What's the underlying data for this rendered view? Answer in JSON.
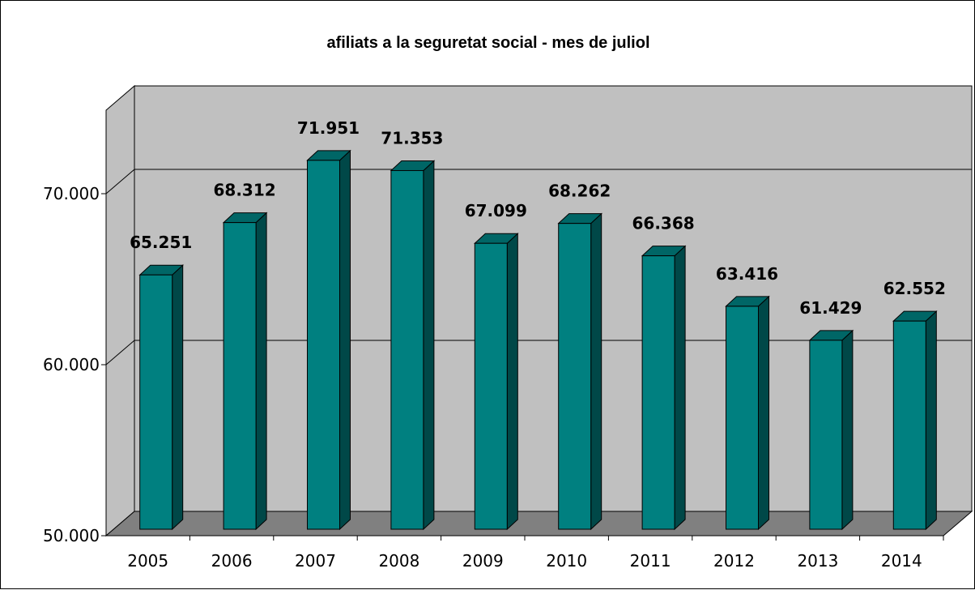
{
  "chart_data": {
    "type": "bar",
    "title": "afiliats a la seguretat social - mes de juliol",
    "categories": [
      "2005",
      "2006",
      "2007",
      "2008",
      "2009",
      "2010",
      "2011",
      "2012",
      "2013",
      "2014"
    ],
    "values": [
      65251,
      68312,
      71951,
      71353,
      67099,
      68262,
      66368,
      63416,
      61429,
      62552
    ],
    "value_labels": [
      "65.251",
      "68.312",
      "71.951",
      "71.353",
      "67.099",
      "68.262",
      "66.368",
      "63.416",
      "61.429",
      "62.552"
    ],
    "y_ticks": [
      {
        "value": 50000,
        "label": "50.000"
      },
      {
        "value": 60000,
        "label": "60.000"
      },
      {
        "value": 70000,
        "label": "70.000"
      }
    ],
    "ylim": [
      50000,
      75000
    ],
    "grid": true,
    "colors": {
      "bar_front": "#008080",
      "bar_top": "#006666",
      "bar_side": "#004848",
      "back_wall": "#c0c0c0",
      "side_wall": "#c0c0c0",
      "floor": "#808080",
      "gridline": "#000000"
    }
  }
}
